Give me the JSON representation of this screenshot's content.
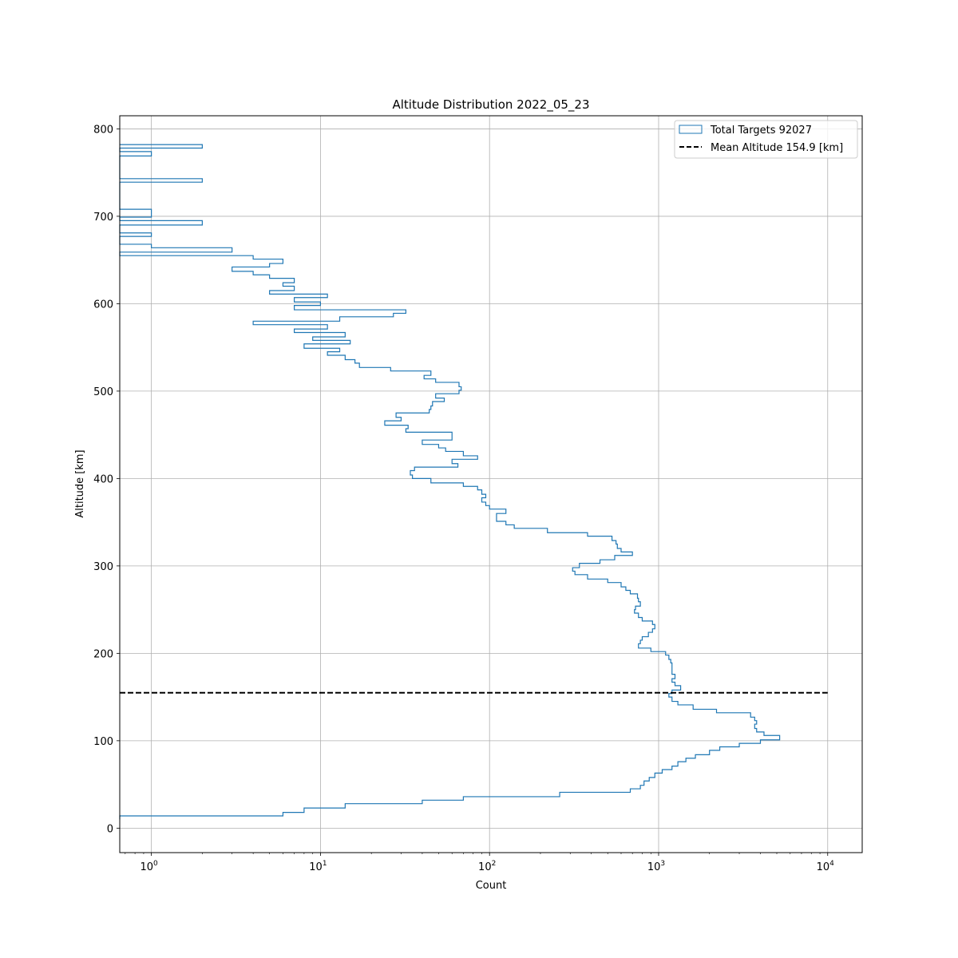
{
  "chart_data": {
    "type": "histogram",
    "orientation": "horizontal",
    "title": "Altitude Distribution 2022_05_23",
    "xlabel": "Count",
    "ylabel": "Altitude [km]",
    "x_scale": "log",
    "xlim": [
      0.65,
      16000
    ],
    "ylim": [
      -28,
      815
    ],
    "x_ticks": [
      {
        "value": 1,
        "mant": "10",
        "exp": "0"
      },
      {
        "value": 10,
        "mant": "10",
        "exp": "1"
      },
      {
        "value": 100,
        "mant": "10",
        "exp": "2"
      },
      {
        "value": 1000,
        "mant": "10",
        "exp": "3"
      },
      {
        "value": 10000,
        "mant": "10",
        "exp": "4"
      }
    ],
    "y_ticks": [
      {
        "value": 0,
        "label": "0"
      },
      {
        "value": 100,
        "label": "100"
      },
      {
        "value": 200,
        "label": "200"
      },
      {
        "value": 300,
        "label": "300"
      },
      {
        "value": 400,
        "label": "400"
      },
      {
        "value": 500,
        "label": "500"
      },
      {
        "value": 600,
        "label": "600"
      },
      {
        "value": 700,
        "label": "700"
      },
      {
        "value": 800,
        "label": "800"
      }
    ],
    "grid": true,
    "legend_position": "upper right",
    "legend": [
      {
        "label": "Total Targets 92027",
        "kind": "histogram"
      },
      {
        "label": "Mean Altitude 154.9 [km]",
        "kind": "dashed-line"
      }
    ],
    "mean_line": {
      "value": 154.9,
      "x_range": [
        0.65,
        10000
      ]
    },
    "series": [
      {
        "name": "Total Targets 92027",
        "color": "#1f77b4",
        "bins_km": [
          [
            10,
            0.65
          ],
          [
            14,
            6
          ],
          [
            18,
            8
          ],
          [
            23,
            14
          ],
          [
            28,
            40
          ],
          [
            32,
            70
          ],
          [
            36,
            260
          ],
          [
            41,
            680
          ],
          [
            45,
            780
          ],
          [
            49,
            820
          ],
          [
            54,
            880
          ],
          [
            58,
            950
          ],
          [
            63,
            1050
          ],
          [
            67,
            1200
          ],
          [
            71,
            1300
          ],
          [
            76,
            1450
          ],
          [
            80,
            1650
          ],
          [
            84,
            2000
          ],
          [
            89,
            2300
          ],
          [
            93,
            3000
          ],
          [
            97,
            4000
          ],
          [
            101,
            5200
          ],
          [
            106,
            4200
          ],
          [
            110,
            3800
          ],
          [
            114,
            3700
          ],
          [
            119,
            3800
          ],
          [
            123,
            3700
          ],
          [
            127,
            3500
          ],
          [
            132,
            2200
          ],
          [
            136,
            1600
          ],
          [
            141,
            1300
          ],
          [
            145,
            1200
          ],
          [
            150,
            1150
          ],
          [
            154,
            1200
          ],
          [
            158,
            1350
          ],
          [
            163,
            1250
          ],
          [
            167,
            1200
          ],
          [
            171,
            1250
          ],
          [
            176,
            1200
          ],
          [
            180,
            1200
          ],
          [
            184,
            1200
          ],
          [
            189,
            1180
          ],
          [
            193,
            1150
          ],
          [
            198,
            1100
          ],
          [
            202,
            900
          ],
          [
            206,
            760
          ],
          [
            211,
            780
          ],
          [
            215,
            800
          ],
          [
            219,
            870
          ],
          [
            224,
            920
          ],
          [
            228,
            950
          ],
          [
            233,
            920
          ],
          [
            237,
            800
          ],
          [
            241,
            760
          ],
          [
            246,
            720
          ],
          [
            250,
            730
          ],
          [
            254,
            780
          ],
          [
            259,
            760
          ],
          [
            263,
            750
          ],
          [
            268,
            680
          ],
          [
            272,
            640
          ],
          [
            276,
            600
          ],
          [
            281,
            500
          ],
          [
            285,
            380
          ],
          [
            290,
            320
          ],
          [
            294,
            310
          ],
          [
            298,
            340
          ],
          [
            303,
            450
          ],
          [
            307,
            550
          ],
          [
            312,
            700
          ],
          [
            316,
            600
          ],
          [
            320,
            570
          ],
          [
            325,
            560
          ],
          [
            329,
            530
          ],
          [
            334,
            380
          ],
          [
            338,
            220
          ],
          [
            343,
            140
          ],
          [
            347,
            125
          ],
          [
            351,
            110
          ],
          [
            356,
            110
          ],
          [
            360,
            125
          ],
          [
            365,
            100
          ],
          [
            369,
            95
          ],
          [
            373,
            90
          ],
          [
            378,
            95
          ],
          [
            382,
            90
          ],
          [
            387,
            85
          ],
          [
            391,
            70
          ],
          [
            395,
            45
          ],
          [
            400,
            35
          ],
          [
            404,
            34
          ],
          [
            409,
            36
          ],
          [
            413,
            65
          ],
          [
            417,
            60
          ],
          [
            422,
            85
          ],
          [
            426,
            70
          ],
          [
            431,
            55
          ],
          [
            435,
            50
          ],
          [
            439,
            40
          ],
          [
            444,
            60
          ],
          [
            448,
            60
          ],
          [
            453,
            32
          ],
          [
            457,
            33
          ],
          [
            461,
            24
          ],
          [
            466,
            30
          ],
          [
            470,
            28
          ],
          [
            475,
            44
          ],
          [
            479,
            45
          ],
          [
            483,
            46
          ],
          [
            488,
            54
          ],
          [
            492,
            48
          ],
          [
            497,
            66
          ],
          [
            501,
            68
          ],
          [
            505,
            66
          ],
          [
            510,
            48
          ],
          [
            514,
            41
          ],
          [
            518,
            45
          ],
          [
            523,
            26
          ],
          [
            527,
            17
          ],
          [
            532,
            16
          ],
          [
            536,
            14
          ],
          [
            541,
            11
          ],
          [
            545,
            13
          ],
          [
            549,
            8
          ],
          [
            554,
            15
          ],
          [
            558,
            9
          ],
          [
            562,
            14
          ],
          [
            567,
            7
          ],
          [
            571,
            11
          ],
          [
            576,
            4
          ],
          [
            580,
            13
          ],
          [
            585,
            27
          ],
          [
            589,
            32
          ],
          [
            593,
            7
          ],
          [
            598,
            10
          ],
          [
            602,
            7
          ],
          [
            607,
            11
          ],
          [
            611,
            5
          ],
          [
            615,
            7
          ],
          [
            620,
            6
          ],
          [
            624,
            7
          ],
          [
            629,
            5
          ],
          [
            633,
            4
          ],
          [
            637,
            3
          ],
          [
            642,
            5
          ],
          [
            646,
            6
          ],
          [
            651,
            4
          ],
          [
            655,
            0.65
          ],
          [
            659,
            3
          ],
          [
            664,
            1
          ],
          [
            668,
            0.65
          ],
          [
            673,
            0.65
          ],
          [
            677,
            1
          ],
          [
            681,
            0.65
          ],
          [
            686,
            0.65
          ],
          [
            690,
            2
          ],
          [
            695,
            0.65
          ],
          [
            699,
            1
          ],
          [
            703,
            1
          ],
          [
            708,
            0.65
          ],
          [
            712,
            0.65
          ],
          [
            717,
            0.65
          ],
          [
            721,
            0.65
          ],
          [
            725,
            0.65
          ],
          [
            730,
            0.65
          ],
          [
            734,
            0.65
          ],
          [
            739,
            2
          ],
          [
            743,
            0.65
          ],
          [
            747,
            0.65
          ],
          [
            752,
            0.65
          ],
          [
            756,
            0.65
          ],
          [
            761,
            0.65
          ],
          [
            765,
            0.65
          ],
          [
            769,
            1
          ],
          [
            774,
            0.65
          ],
          [
            778,
            2
          ]
        ]
      }
    ]
  }
}
